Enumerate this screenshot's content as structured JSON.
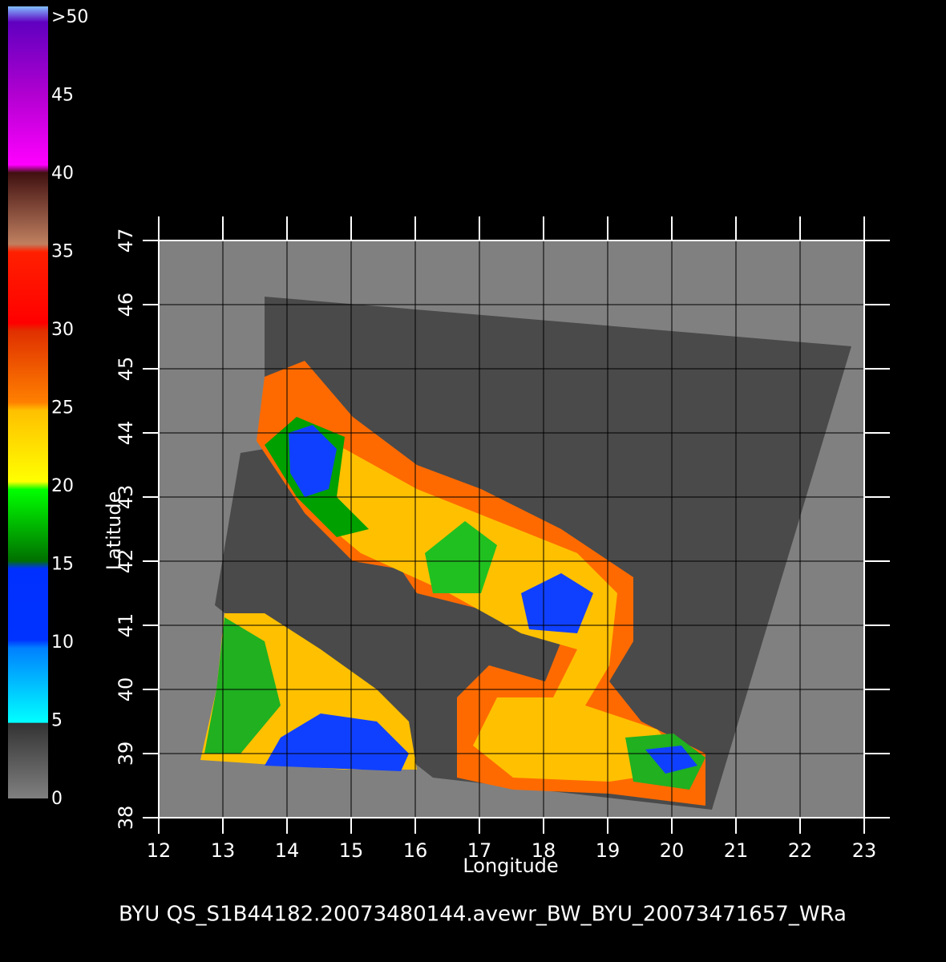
{
  "colorbar": {
    "labels": [
      {
        "value": 50,
        "label": ">50"
      },
      45,
      40,
      35,
      30,
      25,
      20,
      15,
      10,
      5,
      0
    ]
  },
  "map": {
    "x_label": "Longitude",
    "y_label": "Latitude",
    "xticks": [
      12,
      13,
      14,
      15,
      16,
      17,
      18,
      19,
      20,
      21,
      22,
      23
    ],
    "yticks": [
      38,
      39,
      40,
      41,
      42,
      43,
      44,
      45,
      46,
      47
    ]
  },
  "footer": {
    "prefix": ":",
    "text": "BYU  QS_S1B44182.20073480144.avewr_BW_BYU_20073471657_WRa"
  }
}
